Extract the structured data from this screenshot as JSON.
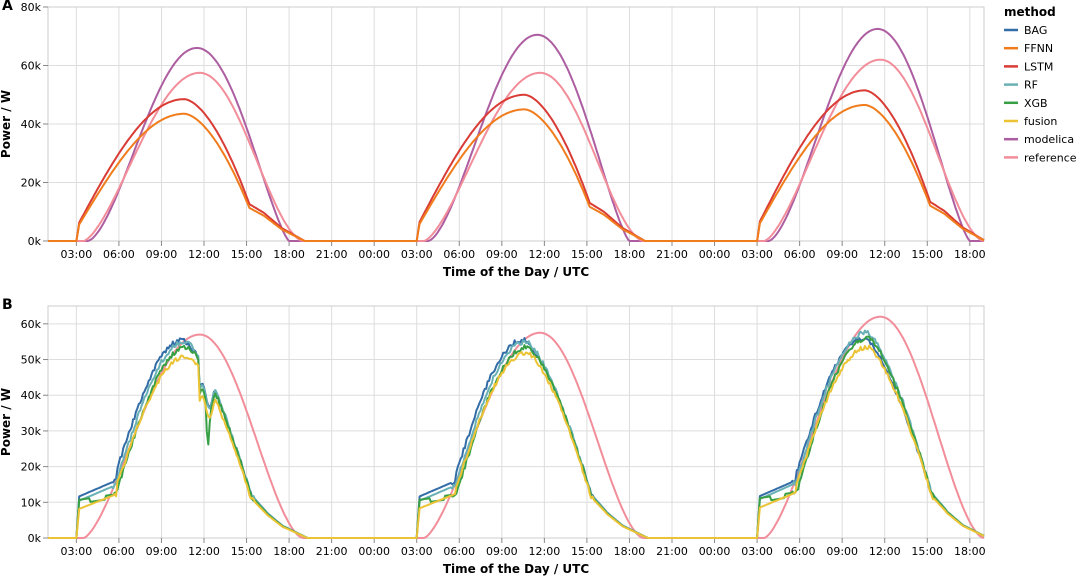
{
  "chart_data": [
    {
      "type": "line",
      "panel": "A",
      "xlabel": "Time of the Day / UTC",
      "ylabel": "Power / W",
      "x_unit": "hours since first 00:00 (day 1)",
      "xlim": [
        1,
        67
      ],
      "ylim": [
        0,
        80000
      ],
      "x_ticks": [
        "03:00",
        "06:00",
        "09:00",
        "12:00",
        "15:00",
        "18:00",
        "21:00",
        "00:00",
        "03:00",
        "06:00",
        "09:00",
        "12:00",
        "15:00",
        "18:00",
        "21:00",
        "00:00",
        "03:00",
        "06:00",
        "09:00",
        "12:00",
        "15:00",
        "18:00"
      ],
      "y_ticks": [
        "0k",
        "20k",
        "40k",
        "60k",
        "80k"
      ],
      "grid": true,
      "series": [
        {
          "name": "modelica",
          "peaks": [
            66000,
            70500,
            72500
          ],
          "peak_hour": 11.5,
          "start": 3.8,
          "end": 18.0
        },
        {
          "name": "reference",
          "peaks": [
            57500,
            57500,
            62000
          ],
          "peak_hour": 11.7,
          "start": 3.5,
          "end": 19.0
        },
        {
          "name": "LSTM",
          "peaks": [
            48500,
            50000,
            51500
          ],
          "peak_hour": 10.6,
          "start": 3.0,
          "end": 19.0
        },
        {
          "name": "FFNN",
          "peaks": [
            43500,
            45000,
            46500
          ],
          "peak_hour": 10.6,
          "start": 3.0,
          "end": 19.0
        }
      ]
    },
    {
      "type": "line",
      "panel": "B",
      "xlabel": "Time of the Day / UTC",
      "ylabel": "Power / W",
      "x_unit": "hours since first 00:00 (day 1)",
      "xlim": [
        1,
        67
      ],
      "ylim": [
        0,
        65000
      ],
      "x_ticks": [
        "03:00",
        "06:00",
        "09:00",
        "12:00",
        "15:00",
        "18:00",
        "21:00",
        "00:00",
        "03:00",
        "06:00",
        "09:00",
        "12:00",
        "15:00",
        "18:00",
        "21:00",
        "00:00",
        "03:00",
        "06:00",
        "09:00",
        "12:00",
        "15:00",
        "18:00"
      ],
      "y_ticks": [
        "0k",
        "10k",
        "20k",
        "30k",
        "40k",
        "50k",
        "60k"
      ],
      "grid": true,
      "series": [
        {
          "name": "reference",
          "peaks": [
            57000,
            57500,
            62000
          ],
          "peak_hour": 11.7
        },
        {
          "name": "BAG",
          "peaks": [
            55500,
            55500,
            56000
          ],
          "peak_hour": 10.5
        },
        {
          "name": "RF",
          "peaks": [
            55000,
            55000,
            57500
          ],
          "peak_hour": 10.7
        },
        {
          "name": "XGB",
          "peaks": [
            53500,
            53500,
            56000
          ],
          "peak_hour": 10.8
        },
        {
          "name": "fusion",
          "peaks": [
            51000,
            52000,
            53500
          ],
          "peak_hour": 10.8
        }
      ]
    }
  ],
  "legend": {
    "title": "method",
    "position": "right",
    "items": [
      {
        "name": "BAG",
        "color": "#336da8"
      },
      {
        "name": "FFNN",
        "color": "#f07c1c"
      },
      {
        "name": "LSTM",
        "color": "#d93b35"
      },
      {
        "name": "RF",
        "color": "#69b0b5"
      },
      {
        "name": "XGB",
        "color": "#38a044"
      },
      {
        "name": "fusion",
        "color": "#ecc335"
      },
      {
        "name": "modelica",
        "color": "#ad5ea1"
      },
      {
        "name": "reference",
        "color": "#f28d9a"
      }
    ]
  },
  "panel_labels": [
    "A",
    "B"
  ]
}
